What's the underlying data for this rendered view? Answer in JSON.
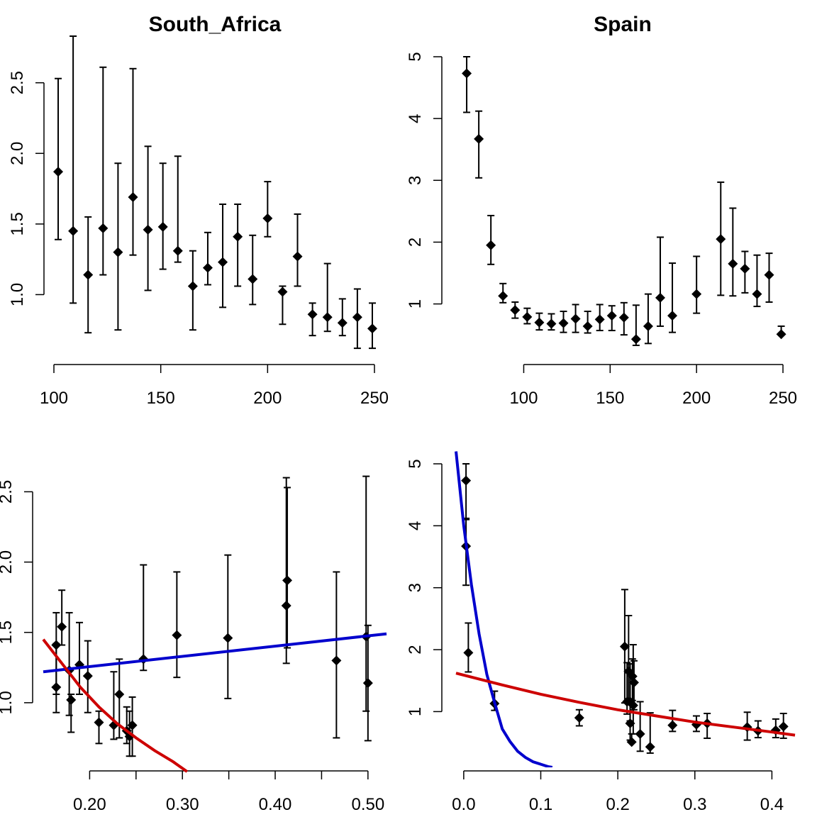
{
  "colors": {
    "points": "#000000",
    "blue_fit": "#0000cd",
    "red_fit": "#cd0000"
  },
  "chart_data": [
    {
      "type": "scatter",
      "title": "South_Africa",
      "xlabel": "",
      "ylabel": "",
      "xlim": [
        100,
        250
      ],
      "ylim": [
        0.5,
        2.85
      ],
      "xticks": [
        100,
        150,
        200,
        250
      ],
      "xtick_labels": [
        "100",
        "150",
        "200",
        "250"
      ],
      "yticks": [
        1.0,
        1.5,
        2.0,
        2.5
      ],
      "ytick_labels": [
        "1.0",
        "1.5",
        "2.0",
        "2.5"
      ],
      "series": [
        {
          "style": "points-with-errorbars",
          "x": [
            102,
            109,
            116,
            123,
            130,
            137,
            144,
            151,
            158,
            165,
            172,
            179,
            186,
            193,
            200,
            207,
            214,
            221,
            228,
            235,
            242,
            249
          ],
          "y": [
            1.87,
            1.45,
            1.14,
            1.47,
            1.3,
            1.69,
            1.46,
            1.48,
            1.31,
            1.06,
            1.19,
            1.23,
            1.41,
            1.11,
            1.54,
            1.02,
            1.27,
            0.86,
            0.84,
            0.8,
            0.84,
            0.76
          ],
          "low": [
            1.39,
            0.94,
            0.73,
            1.14,
            0.75,
            1.28,
            1.03,
            1.18,
            1.23,
            0.75,
            1.07,
            0.91,
            1.06,
            0.93,
            1.41,
            0.79,
            1.06,
            0.71,
            0.74,
            0.71,
            0.62,
            0.62
          ],
          "high": [
            2.53,
            2.83,
            1.55,
            2.61,
            1.93,
            2.6,
            2.05,
            1.93,
            1.98,
            1.31,
            1.44,
            1.64,
            1.64,
            1.42,
            1.8,
            1.06,
            1.57,
            0.94,
            1.22,
            0.97,
            1.04,
            0.94
          ]
        }
      ]
    },
    {
      "type": "scatter",
      "title": "Spain",
      "xlabel": "",
      "ylabel": "",
      "xlim": [
        60,
        250
      ],
      "ylim": [
        0.1,
        5.0
      ],
      "xticks": [
        100,
        150,
        200,
        250
      ],
      "xtick_labels": [
        "100",
        "150",
        "200",
        "250"
      ],
      "yticks": [
        1,
        2,
        3,
        4,
        5
      ],
      "ytick_labels": [
        "1",
        "2",
        "3",
        "4",
        "5"
      ],
      "series": [
        {
          "style": "points-with-errorbars",
          "x": [
            67,
            74,
            81,
            88,
            95,
            102,
            109,
            116,
            123,
            130,
            137,
            144,
            151,
            158,
            165,
            172,
            179,
            186,
            200,
            214,
            221,
            228,
            235,
            242,
            249
          ],
          "y": [
            4.73,
            3.67,
            1.95,
            1.13,
            0.9,
            0.79,
            0.7,
            0.68,
            0.69,
            0.76,
            0.64,
            0.75,
            0.81,
            0.78,
            0.43,
            0.64,
            1.1,
            0.81,
            1.16,
            2.05,
            1.65,
            1.57,
            1.16,
            1.47,
            0.51
          ],
          "low": [
            4.1,
            3.04,
            1.64,
            1.02,
            0.77,
            0.68,
            0.58,
            0.58,
            0.54,
            0.54,
            0.53,
            0.57,
            0.57,
            0.5,
            0.33,
            0.36,
            0.64,
            0.54,
            0.85,
            1.14,
            1.13,
            1.18,
            0.96,
            1.03,
            0.51
          ],
          "high": [
            5.0,
            4.12,
            2.43,
            1.33,
            1.03,
            0.93,
            0.85,
            0.84,
            0.88,
            0.99,
            0.88,
            0.99,
            0.97,
            1.02,
            0.98,
            1.16,
            2.08,
            1.66,
            1.77,
            2.97,
            2.55,
            1.85,
            1.79,
            1.82,
            0.64
          ]
        }
      ]
    },
    {
      "type": "scatter",
      "title": "",
      "xlabel": "",
      "ylabel": "",
      "xlim": [
        0.15,
        0.52
      ],
      "ylim": [
        0.5,
        2.85
      ],
      "xticks": [
        0.2,
        0.25,
        0.3,
        0.35,
        0.4,
        0.45,
        0.5
      ],
      "xtick_labels": [
        "0.20",
        "",
        "0.30",
        "",
        "0.40",
        "",
        "0.50"
      ],
      "yticks": [
        1.0,
        1.5,
        2.0,
        2.5
      ],
      "ytick_labels": [
        "1.0",
        "1.5",
        "2.0",
        "2.5"
      ],
      "series": [
        {
          "style": "points-with-errorbars",
          "x": [
            0.164,
            0.164,
            0.17,
            0.178,
            0.18,
            0.189,
            0.198,
            0.21,
            0.226,
            0.232,
            0.24,
            0.243,
            0.246,
            0.258,
            0.294,
            0.349,
            0.412,
            0.413,
            0.466,
            0.498,
            0.5
          ],
          "y": [
            1.41,
            1.11,
            1.54,
            1.23,
            1.02,
            1.27,
            1.19,
            0.86,
            0.84,
            1.06,
            0.8,
            0.76,
            0.84,
            1.31,
            1.48,
            1.46,
            1.69,
            1.87,
            1.3,
            1.47,
            1.14
          ],
          "low": [
            1.06,
            0.93,
            1.41,
            0.91,
            0.79,
            1.06,
            0.93,
            0.71,
            0.74,
            0.75,
            0.71,
            0.62,
            0.62,
            1.23,
            1.18,
            1.03,
            1.28,
            1.39,
            0.75,
            0.94,
            0.73
          ],
          "high": [
            1.64,
            1.42,
            1.8,
            1.64,
            1.06,
            1.57,
            1.44,
            0.94,
            1.22,
            1.31,
            0.97,
            0.94,
            1.04,
            1.98,
            1.93,
            2.05,
            2.6,
            2.53,
            1.93,
            2.61,
            1.55
          ]
        },
        {
          "style": "line",
          "color": "blue_fit",
          "x": [
            0.15,
            0.52
          ],
          "y": [
            1.22,
            1.49
          ]
        },
        {
          "style": "line",
          "color": "red_fit",
          "x": [
            0.15,
            0.17,
            0.19,
            0.21,
            0.23,
            0.25,
            0.27,
            0.29,
            0.305
          ],
          "y": [
            1.45,
            1.28,
            1.11,
            0.97,
            0.85,
            0.75,
            0.66,
            0.58,
            0.51
          ]
        }
      ]
    },
    {
      "type": "scatter",
      "title": "",
      "xlabel": "",
      "ylabel": "",
      "xlim": [
        -0.01,
        0.43
      ],
      "ylim": [
        0.1,
        5.0
      ],
      "xticks": [
        0.0,
        0.1,
        0.2,
        0.3,
        0.4
      ],
      "xtick_labels": [
        "0.0",
        "0.1",
        "0.2",
        "0.3",
        "0.4"
      ],
      "yticks": [
        1,
        2,
        3,
        4,
        5
      ],
      "ytick_labels": [
        "1",
        "2",
        "3",
        "4",
        "5"
      ],
      "series": [
        {
          "style": "points-with-errorbars",
          "x": [
            0.003,
            0.003,
            0.006,
            0.04,
            0.15,
            0.209,
            0.212,
            0.214,
            0.216,
            0.216,
            0.218,
            0.219,
            0.22,
            0.221,
            0.229,
            0.242,
            0.271,
            0.302,
            0.316,
            0.368,
            0.382,
            0.405,
            0.415
          ],
          "y": [
            4.73,
            3.67,
            1.95,
            1.13,
            0.9,
            2.05,
            1.16,
            1.65,
            1.16,
            0.81,
            0.51,
            1.57,
            1.1,
            1.47,
            0.64,
            0.43,
            0.78,
            0.79,
            0.81,
            0.75,
            0.69,
            0.7,
            0.76
          ],
          "low": [
            4.1,
            3.04,
            1.64,
            1.02,
            0.77,
            1.14,
            0.96,
            1.13,
            0.85,
            0.54,
            0.51,
            1.18,
            0.64,
            1.03,
            0.36,
            0.33,
            0.68,
            0.68,
            0.57,
            0.54,
            0.58,
            0.58,
            0.57
          ],
          "high": [
            5.0,
            4.12,
            2.43,
            1.33,
            1.03,
            2.97,
            1.79,
            2.55,
            1.77,
            1.66,
            0.64,
            1.85,
            2.08,
            1.82,
            1.16,
            0.98,
            1.02,
            0.93,
            0.97,
            0.99,
            0.85,
            0.88,
            0.97
          ]
        },
        {
          "style": "line",
          "color": "blue_fit",
          "x": [
            -0.01,
            0.0,
            0.01,
            0.02,
            0.03,
            0.04,
            0.05,
            0.06,
            0.07,
            0.08,
            0.09,
            0.1,
            0.11,
            0.115
          ],
          "y": [
            5.2,
            4.0,
            3.05,
            2.25,
            1.6,
            1.15,
            0.72,
            0.52,
            0.36,
            0.26,
            0.19,
            0.15,
            0.11,
            0.1
          ]
        },
        {
          "style": "line",
          "color": "red_fit",
          "x": [
            -0.01,
            0.05,
            0.1,
            0.15,
            0.2,
            0.25,
            0.3,
            0.35,
            0.4,
            0.43
          ],
          "y": [
            1.62,
            1.43,
            1.28,
            1.15,
            1.03,
            0.93,
            0.83,
            0.75,
            0.67,
            0.62
          ]
        }
      ]
    }
  ]
}
